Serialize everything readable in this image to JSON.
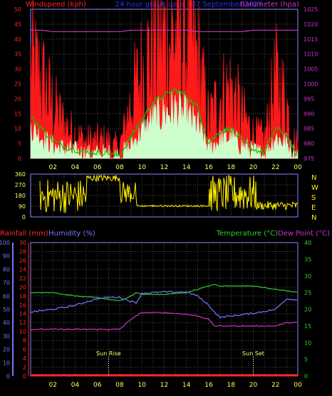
{
  "header": {
    "wind_label": "Windspeed (kph)",
    "title": "24 hour graph data - 07 September 2023",
    "baro_label": "Barometer (hpa)"
  },
  "colors": {
    "background": "#000000",
    "grid": "#4a4a4a",
    "gust": "#ff1a1a",
    "wind_avg": "#00cc00",
    "wind_light": "#ccffcc",
    "barometer": "#cc33cc",
    "direction": "#ffee00",
    "rain": "#ff2a2a",
    "humidity": "#7777ff",
    "temperature": "#33cc33",
    "dewpoint": "#cc33cc",
    "title_blue": "#2233ff",
    "wind_axis": "#ff2222",
    "temp_axis": "#22cc22",
    "tick": "#ffff66",
    "plot_border": "#8888ff"
  },
  "chart_data": [
    {
      "type": "line",
      "title": "24 hour graph data - 07 September 2023",
      "xlabel": "",
      "x_ticks": [
        "02",
        "04",
        "06",
        "08",
        "10",
        "12",
        "14",
        "16",
        "18",
        "20",
        "22",
        "00"
      ],
      "ylabel": "Windspeed (kph)",
      "ylim": [
        0,
        50
      ],
      "y_ticks": [
        0,
        5,
        10,
        15,
        20,
        25,
        30,
        35,
        40,
        45,
        50
      ],
      "y2label": "Barometer (hpa)",
      "y2lim": [
        975,
        1025
      ],
      "y2_ticks": [
        975,
        980,
        985,
        990,
        995,
        1000,
        1005,
        1010,
        1015,
        1020,
        1025
      ],
      "grid": true,
      "hours": [
        0,
        1,
        2,
        3,
        4,
        5,
        6,
        7,
        7.5,
        8,
        9,
        10,
        11,
        12,
        13,
        14,
        15,
        16,
        17,
        18,
        19,
        20,
        21,
        22,
        23,
        23.5,
        24
      ],
      "series": [
        {
          "key": "gust",
          "values": [
            30,
            25,
            17,
            11,
            8,
            5,
            5,
            5,
            2,
            3,
            18,
            28,
            35,
            38,
            40,
            38,
            32,
            12,
            20,
            22,
            14,
            8,
            6,
            25,
            18,
            6,
            3
          ]
        },
        {
          "key": "average",
          "values": [
            14,
            10,
            6,
            4,
            3,
            2,
            2,
            2,
            1,
            1,
            7,
            13,
            19,
            21,
            23,
            21,
            17,
            5,
            9,
            10,
            6,
            3,
            2,
            10,
            8,
            3,
            1
          ]
        },
        {
          "key": "light",
          "values": [
            10,
            7,
            4,
            3,
            2,
            1,
            1,
            1,
            0.5,
            0.5,
            4,
            9,
            13,
            15,
            16,
            14,
            11,
            3,
            6,
            7,
            4,
            2,
            1,
            7,
            5,
            2,
            0.5
          ]
        },
        {
          "key": "barometer",
          "values": [
            1018,
            1018,
            1017.5,
            1017.5,
            1017.5,
            1017.5,
            1017.5,
            1017.5,
            1017.5,
            1017.5,
            1018,
            1018,
            1018,
            1018,
            1018,
            1018,
            1017.5,
            1017.5,
            1017.5,
            1017.5,
            1017.5,
            1018,
            1018,
            1018,
            1018,
            1018,
            1018
          ]
        }
      ]
    },
    {
      "type": "scatter",
      "ylabel_right": [
        "N",
        "W",
        "S",
        "E",
        "N"
      ],
      "ylim": [
        0,
        360
      ],
      "y_ticks": [
        0,
        90,
        180,
        270,
        360
      ],
      "x_ticks": [
        "02",
        "04",
        "06",
        "08",
        "10",
        "12",
        "14",
        "16",
        "18",
        "20",
        "22",
        "00"
      ],
      "grid": true,
      "series": [
        {
          "key": "direction",
          "segments": [
            {
              "from": 0.8,
              "to": 5,
              "low": 30,
              "high": 320
            },
            {
              "from": 5,
              "to": 8,
              "low": 300,
              "high": 355
            },
            {
              "from": 8,
              "to": 9.5,
              "low": 110,
              "high": 300
            },
            {
              "from": 9.5,
              "to": 16,
              "low": 85,
              "high": 100
            },
            {
              "from": 16,
              "to": 20.3,
              "low": 40,
              "high": 350
            },
            {
              "from": 20.3,
              "to": 24,
              "low": 60,
              "high": 130
            }
          ]
        }
      ]
    },
    {
      "type": "line",
      "x_ticks": [
        "02",
        "04",
        "06",
        "08",
        "10",
        "12",
        "14",
        "16",
        "18",
        "20",
        "22",
        "00"
      ],
      "left_axis_1": {
        "label": "Rainfall (mm)",
        "ticks": [
          0,
          2,
          4,
          6,
          8,
          10,
          12,
          14,
          16,
          18,
          20,
          22,
          24,
          26,
          28,
          30
        ]
      },
      "left_axis_2": {
        "label": "Humidity (%)",
        "ticks": [
          0,
          10,
          20,
          30,
          40,
          50,
          60,
          70,
          80,
          90,
          100
        ]
      },
      "right_axis": {
        "label": "Temperature (°C)",
        "ticks": [
          0,
          5,
          10,
          15,
          20,
          25,
          30,
          35,
          40
        ]
      },
      "dewpoint_label": "Dew Point (°C)",
      "grid": true,
      "hours": [
        0,
        2,
        4,
        6,
        7,
        8,
        9,
        9.5,
        10,
        12,
        14,
        15,
        16,
        16.5,
        17,
        18,
        20,
        22,
        23,
        24
      ],
      "series": [
        {
          "key": "rainfall",
          "values": [
            0,
            0,
            0,
            0,
            0,
            0,
            0,
            0,
            0,
            0,
            0,
            0,
            0,
            0,
            0,
            0,
            0,
            0,
            0,
            0
          ]
        },
        {
          "key": "humidity",
          "values": [
            48,
            50,
            53,
            58,
            59,
            59,
            56,
            55,
            62,
            63,
            63,
            60,
            53,
            48,
            44,
            45,
            47,
            50,
            58,
            57
          ]
        },
        {
          "key": "temperature",
          "values": [
            25,
            25,
            24,
            23.5,
            23,
            22.5,
            24,
            25,
            24.5,
            24.5,
            25,
            26,
            27,
            27.5,
            27,
            27,
            27,
            26,
            25.5,
            25
          ]
        },
        {
          "key": "dewpoint",
          "values": [
            14,
            14,
            14,
            14,
            14,
            14,
            17,
            18,
            19,
            19,
            18.5,
            18,
            17,
            15,
            15,
            15,
            15,
            15,
            16,
            16
          ]
        }
      ],
      "annotations": [
        {
          "text": "Sun Rise",
          "hour": 7
        },
        {
          "text": "Sun Set",
          "hour": 20
        }
      ]
    }
  ]
}
